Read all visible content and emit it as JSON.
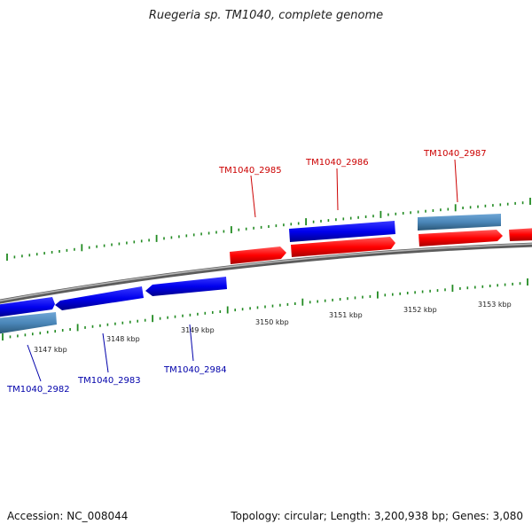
{
  "title": "Ruegeria sp. TM1040, complete genome",
  "footer": {
    "accession": "Accession: NC_008044",
    "summary": "Topology: circular; Length: 3,200,938 bp; Genes: 3,080"
  },
  "colors": {
    "forward_gene": "#ff0000",
    "reverse_gene": "#0000ee",
    "other_feature": "#4a86b8",
    "backbone": "#888888",
    "tick": "#228b22",
    "forward_label": "#cc0000",
    "reverse_label": "#0000aa"
  },
  "kbp_ticks": [
    "3147 kbp",
    "3148 kbp",
    "3149 kbp",
    "3150 kbp",
    "3151 kbp",
    "3152 kbp",
    "3153 kbp"
  ],
  "gene_labels": {
    "top": [
      "TM1040_2985",
      "TM1040_2986",
      "TM1040_2987"
    ],
    "bottom": [
      "TM1040_2982",
      "TM1040_2983",
      "TM1040_2984"
    ]
  }
}
